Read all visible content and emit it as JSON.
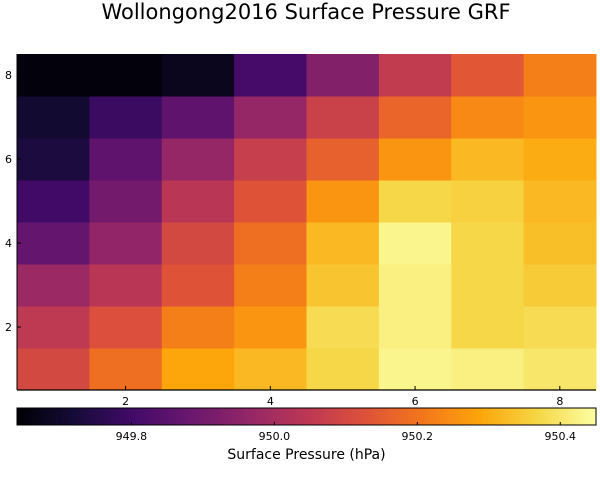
{
  "chart_data": {
    "type": "heatmap",
    "title": "Wollongong2016 Surface Pressure GRF",
    "x": [
      1,
      2,
      3,
      4,
      5,
      6,
      7,
      8
    ],
    "y": [
      1,
      2,
      3,
      4,
      5,
      6,
      7,
      8
    ],
    "xticks": [
      "2",
      "4",
      "6",
      "8"
    ],
    "yticks": [
      "2",
      "4",
      "6",
      "8"
    ],
    "xtick_values": [
      2,
      4,
      6,
      8
    ],
    "ytick_values": [
      2,
      4,
      6,
      8
    ],
    "xlim": [
      0.5,
      8.5
    ],
    "ylim": [
      0.5,
      8.5
    ],
    "values": [
      [
        950.1,
        950.19,
        950.29,
        950.32,
        950.37,
        950.43,
        950.42,
        950.4
      ],
      [
        950.05,
        950.12,
        950.22,
        950.26,
        950.38,
        950.42,
        950.37,
        950.38
      ],
      [
        949.98,
        950.04,
        950.13,
        950.22,
        950.34,
        950.42,
        950.37,
        950.35
      ],
      [
        949.87,
        949.96,
        950.1,
        950.19,
        950.32,
        950.43,
        950.37,
        950.33
      ],
      [
        949.8,
        949.9,
        950.04,
        950.13,
        950.26,
        950.37,
        950.36,
        950.32
      ],
      [
        949.73,
        949.86,
        949.97,
        950.07,
        950.16,
        950.26,
        950.32,
        950.3
      ],
      [
        949.71,
        949.79,
        949.86,
        949.97,
        950.08,
        950.17,
        950.24,
        950.26
      ],
      [
        949.65,
        949.65,
        949.68,
        949.81,
        949.93,
        950.06,
        950.14,
        950.22
      ]
    ],
    "colorbar": {
      "label": "Surface Pressure (hPa)",
      "min": 949.64,
      "max": 950.45,
      "ticks": [
        949.8,
        950.0,
        950.2,
        950.4
      ],
      "tick_labels": [
        "949.8",
        "950.0",
        "950.2",
        "950.4"
      ],
      "colormap": "inferno",
      "position": "bottom"
    },
    "grid": false
  }
}
